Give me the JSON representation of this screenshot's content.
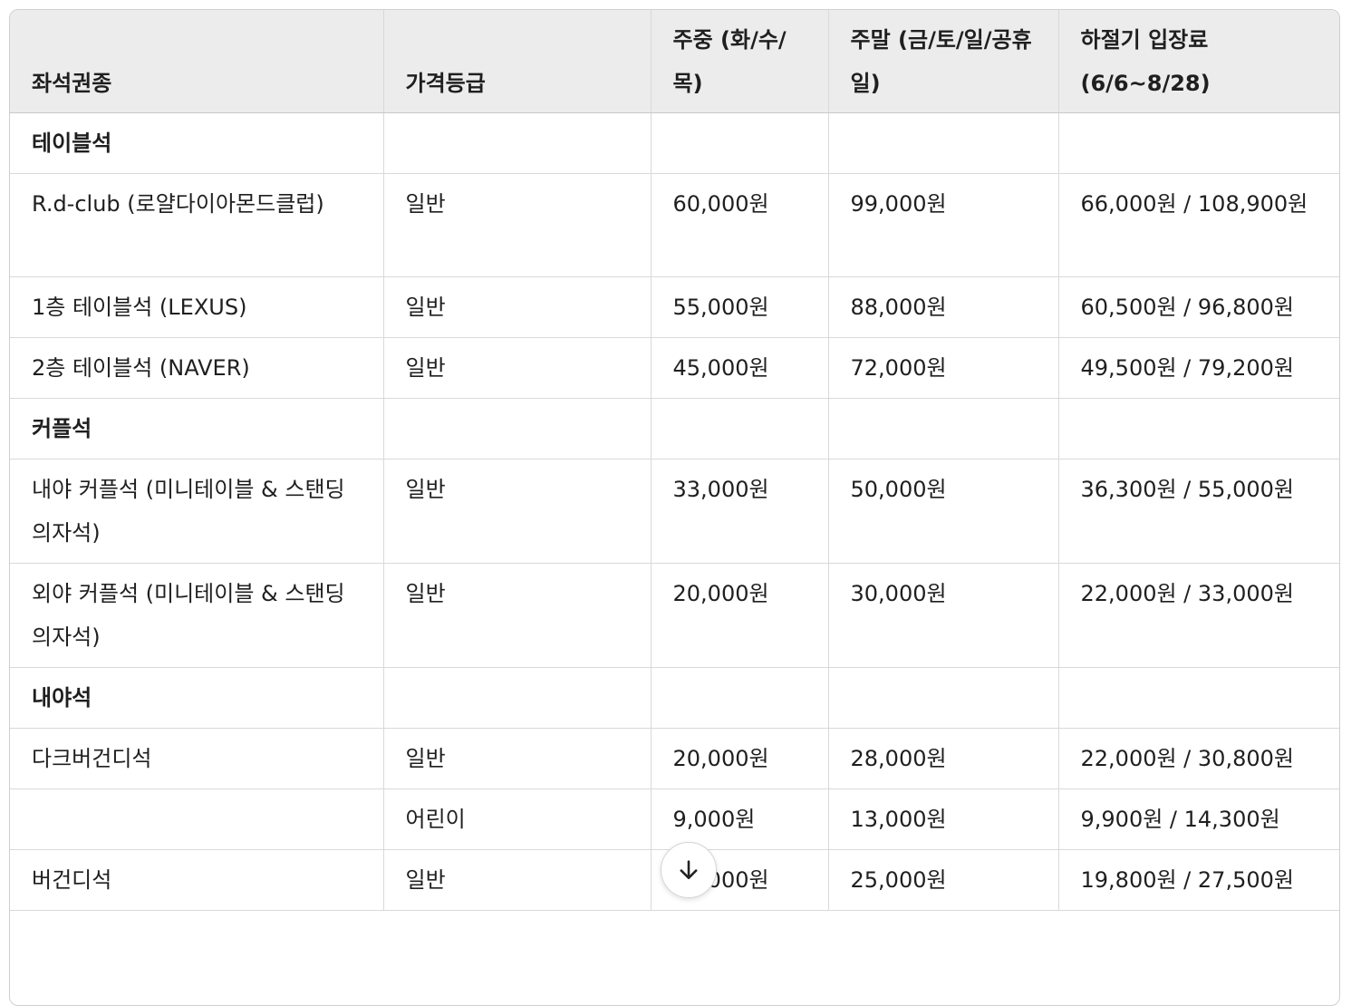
{
  "table": {
    "headers": [
      "좌석권종",
      "가격등급",
      "주중 (화/수/목)",
      "주말 (금/토/일/공휴일)",
      "하절기 입장료 (6/6~8/28)"
    ],
    "rows": [
      {
        "type": "section",
        "cells": [
          "테이블석",
          "",
          "",
          "",
          ""
        ]
      },
      {
        "type": "row",
        "cells": [
          "R.d-club (로얄다이아몬드클럽)",
          "일반",
          "60,000원",
          "99,000원",
          "66,000원 / 108,900원"
        ]
      },
      {
        "type": "row",
        "cells": [
          "1층 테이블석 (LEXUS)",
          "일반",
          "55,000원",
          "88,000원",
          "60,500원 / 96,800원"
        ]
      },
      {
        "type": "row",
        "cells": [
          "2층 테이블석 (NAVER)",
          "일반",
          "45,000원",
          "72,000원",
          "49,500원 / 79,200원"
        ]
      },
      {
        "type": "section",
        "cells": [
          "커플석",
          "",
          "",
          "",
          ""
        ]
      },
      {
        "type": "row",
        "cells": [
          "내야 커플석 (미니테이블 & 스탠딩 의자석)",
          "일반",
          "33,000원",
          "50,000원",
          "36,300원 / 55,000원"
        ]
      },
      {
        "type": "row",
        "cells": [
          "외야 커플석 (미니테이블 & 스탠딩 의자석)",
          "일반",
          "20,000원",
          "30,000원",
          "22,000원 / 33,000원"
        ]
      },
      {
        "type": "section",
        "cells": [
          "내야석",
          "",
          "",
          "",
          ""
        ]
      },
      {
        "type": "row",
        "cells": [
          "다크버건디석",
          "일반",
          "20,000원",
          "28,000원",
          "22,000원 / 30,800원"
        ]
      },
      {
        "type": "row",
        "cells": [
          "",
          "어린이",
          "9,000원",
          "13,000원",
          "9,900원 / 14,300원"
        ]
      },
      {
        "type": "row",
        "cells": [
          "버건디석",
          "일반",
          "18,000원",
          "25,000원",
          "19,800원 / 27,500원"
        ]
      }
    ]
  },
  "scroll_button": {
    "icon": "arrow-down-icon"
  }
}
